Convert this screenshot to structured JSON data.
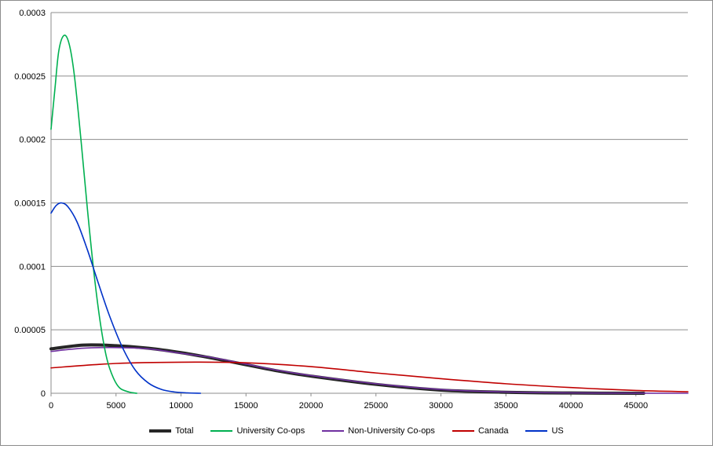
{
  "chart_data": {
    "type": "line",
    "title": "",
    "xlabel": "",
    "ylabel": "",
    "xlim": [
      0,
      49000
    ],
    "ylim": [
      0,
      0.0003
    ],
    "x_ticks": [
      "0",
      "5000",
      "10000",
      "15000",
      "20000",
      "25000",
      "30000",
      "35000",
      "40000",
      "45000"
    ],
    "x_tick_values": [
      0,
      5000,
      10000,
      15000,
      20000,
      25000,
      30000,
      35000,
      40000,
      45000
    ],
    "y_ticks": [
      "0",
      "0.00005",
      "0.0001",
      "0.00015",
      "0.0002",
      "0.00025",
      "0.0003"
    ],
    "y_tick_values": [
      0,
      5e-05,
      0.0001,
      0.00015,
      0.0002,
      0.00025,
      0.0003
    ],
    "grid": "horizontal",
    "legend_position": "bottom",
    "series": [
      {
        "name": "Total",
        "color": "#262626",
        "width": 4,
        "x": [
          0,
          2500,
          5000,
          7500,
          10000,
          12500,
          15000,
          17500,
          20000,
          25000,
          30000,
          35000,
          40000,
          45600
        ],
        "y": [
          3.5e-05,
          3.8e-05,
          3.75e-05,
          3.55e-05,
          3.2e-05,
          2.75e-05,
          2.25e-05,
          1.75e-05,
          1.35e-05,
          7e-06,
          2.5e-06,
          8e-07,
          2e-07,
          0.0
        ]
      },
      {
        "name": "University Co-ops",
        "color": "#00b050",
        "width": 1.6,
        "x": [
          0,
          300,
          600,
          1000,
          1400,
          1800,
          2300,
          2800,
          3300,
          3800,
          4300,
          4800,
          5300,
          6000,
          6600
        ],
        "y": [
          0.000208,
          0.00024,
          0.00027,
          0.000282,
          0.000275,
          0.00025,
          0.0002,
          0.000145,
          9.5e-05,
          5.5e-05,
          2.7e-05,
          1.2e-05,
          4e-06,
          1e-06,
          0.0
        ]
      },
      {
        "name": "Non-University Co-ops",
        "color": "#7030a0",
        "width": 1.6,
        "x": [
          0,
          2500,
          5000,
          7500,
          10000,
          12500,
          15000,
          17500,
          20000,
          25000,
          30000,
          35000,
          40000,
          45000,
          49000
        ],
        "y": [
          3.3e-05,
          3.55e-05,
          3.6e-05,
          3.5e-05,
          3.15e-05,
          2.8e-05,
          2.3e-05,
          1.8e-05,
          1.4e-05,
          7.5e-06,
          3e-06,
          1e-06,
          3e-07,
          1e-07,
          0.0
        ]
      },
      {
        "name": "Canada",
        "color": "#c00000",
        "width": 1.6,
        "x": [
          0,
          5000,
          10000,
          15000,
          20000,
          25000,
          30000,
          35000,
          40000,
          45000,
          49000
        ],
        "y": [
          2e-05,
          2.35e-05,
          2.45e-05,
          2.4e-05,
          2.1e-05,
          1.6e-05,
          1.15e-05,
          7.5e-06,
          4.5e-06,
          2.2e-06,
          1.2e-06
        ]
      },
      {
        "name": "US",
        "color": "#0032c8",
        "width": 1.6,
        "x": [
          0,
          400,
          800,
          1300,
          2000,
          2800,
          3600,
          4500,
          5500,
          6500,
          7500,
          8500,
          9500,
          10500,
          11500
        ],
        "y": [
          0.000142,
          0.000148,
          0.00015,
          0.000147,
          0.000135,
          0.000113,
          8.8e-05,
          6.1e-05,
          3.6e-05,
          1.8e-05,
          8e-06,
          3e-06,
          1e-06,
          3e-07,
          0.0
        ]
      }
    ]
  }
}
